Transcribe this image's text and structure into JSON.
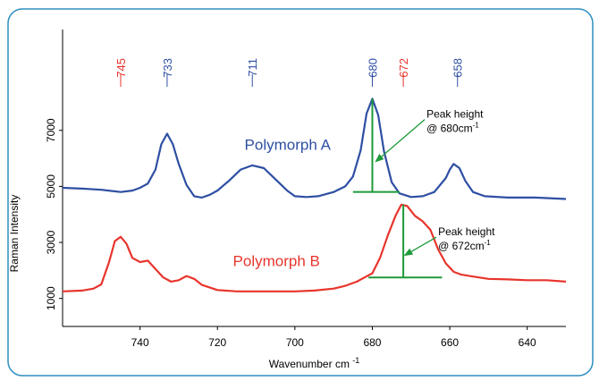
{
  "chart_data": {
    "type": "line",
    "title": "",
    "xlabel": "Wavenumber cm",
    "xlabel_sup": "-1",
    "ylabel": "Raman Intensity",
    "xlim": [
      760,
      630
    ],
    "ylim": [
      0,
      10600
    ],
    "x_ticks": [
      740,
      720,
      700,
      680,
      660,
      640
    ],
    "y_ticks": [
      1000,
      3000,
      5000,
      7000
    ],
    "grid": false,
    "series": [
      {
        "name": "Polymorph A",
        "color": "#2e4fa3",
        "points": [
          [
            760,
            4950
          ],
          [
            755,
            4920
          ],
          [
            750,
            4880
          ],
          [
            745,
            4800
          ],
          [
            742,
            4850
          ],
          [
            740,
            4950
          ],
          [
            738,
            5100
          ],
          [
            736,
            5600
          ],
          [
            734.5,
            6500
          ],
          [
            733,
            6880
          ],
          [
            731.5,
            6500
          ],
          [
            730,
            5800
          ],
          [
            728,
            5050
          ],
          [
            726,
            4650
          ],
          [
            724,
            4600
          ],
          [
            722,
            4700
          ],
          [
            720,
            4850
          ],
          [
            717,
            5200
          ],
          [
            714,
            5600
          ],
          [
            711,
            5750
          ],
          [
            708,
            5650
          ],
          [
            705,
            5250
          ],
          [
            702,
            4850
          ],
          [
            700,
            4650
          ],
          [
            697,
            4620
          ],
          [
            694,
            4650
          ],
          [
            690,
            4800
          ],
          [
            687,
            5000
          ],
          [
            685,
            5350
          ],
          [
            683,
            6300
          ],
          [
            681.5,
            7600
          ],
          [
            680,
            8130
          ],
          [
            678.5,
            7550
          ],
          [
            677,
            6250
          ],
          [
            675,
            5150
          ],
          [
            673,
            4750
          ],
          [
            670,
            4620
          ],
          [
            667,
            4650
          ],
          [
            664,
            4800
          ],
          [
            661,
            5300
          ],
          [
            660,
            5600
          ],
          [
            659,
            5800
          ],
          [
            657.5,
            5650
          ],
          [
            656,
            5200
          ],
          [
            654,
            4800
          ],
          [
            651,
            4650
          ],
          [
            645,
            4600
          ],
          [
            638,
            4600
          ],
          [
            630,
            4550
          ]
        ]
      },
      {
        "name": "Polymorph B",
        "color": "#e8342c",
        "points": [
          [
            760,
            1250
          ],
          [
            755,
            1280
          ],
          [
            752,
            1350
          ],
          [
            750,
            1500
          ],
          [
            748,
            2300
          ],
          [
            746.5,
            3050
          ],
          [
            745,
            3200
          ],
          [
            743.5,
            2950
          ],
          [
            742,
            2450
          ],
          [
            740,
            2300
          ],
          [
            738,
            2350
          ],
          [
            736,
            2050
          ],
          [
            734,
            1750
          ],
          [
            732,
            1600
          ],
          [
            730,
            1650
          ],
          [
            728,
            1800
          ],
          [
            726,
            1700
          ],
          [
            724,
            1480
          ],
          [
            720,
            1300
          ],
          [
            715,
            1250
          ],
          [
            705,
            1250
          ],
          [
            700,
            1250
          ],
          [
            695,
            1280
          ],
          [
            690,
            1350
          ],
          [
            687,
            1450
          ],
          [
            684,
            1600
          ],
          [
            682,
            1750
          ],
          [
            680,
            1900
          ],
          [
            678,
            2450
          ],
          [
            676,
            3250
          ],
          [
            674,
            3950
          ],
          [
            672.5,
            4350
          ],
          [
            671,
            4300
          ],
          [
            669,
            3950
          ],
          [
            667,
            3750
          ],
          [
            665,
            3450
          ],
          [
            663,
            2750
          ],
          [
            661,
            2250
          ],
          [
            659,
            1950
          ],
          [
            657,
            1850
          ],
          [
            654,
            1780
          ],
          [
            650,
            1700
          ],
          [
            645,
            1680
          ],
          [
            640,
            1650
          ],
          [
            635,
            1650
          ],
          [
            630,
            1600
          ]
        ]
      }
    ],
    "peak_labels": [
      {
        "text": "745",
        "x": 745,
        "color": "#e8342c"
      },
      {
        "text": "733",
        "x": 733,
        "color": "#2e4fa3"
      },
      {
        "text": "711",
        "x": 711,
        "color": "#2e4fa3"
      },
      {
        "text": "680",
        "x": 680,
        "color": "#2e4fa3"
      },
      {
        "text": "672",
        "x": 672,
        "color": "#e8342c"
      },
      {
        "text": "658",
        "x": 658,
        "color": "#2e4fa3"
      }
    ],
    "series_labels": [
      {
        "text": "Polymorph A",
        "x": 713,
        "y": 6300,
        "color": "#2e4fa3"
      },
      {
        "text": "Polymorph B",
        "x": 716,
        "y": 2150,
        "color": "#e8342c"
      }
    ],
    "peak_markers": [
      {
        "peak_x": 680,
        "peak_y": 8130,
        "base_y": 4800,
        "base_x1": 685,
        "base_x2": 673
      },
      {
        "peak_x": 672,
        "peak_y": 4350,
        "base_y": 1750,
        "base_x1": 681,
        "base_x2": 662
      }
    ],
    "annotations": [
      {
        "line1": "Peak height",
        "line2": "@ 680cm",
        "sup": "-1",
        "text_x": 666,
        "text_y": 7450,
        "arrow_to_x": 679,
        "arrow_to_y": 5900
      },
      {
        "line1": "Peak height",
        "line2": "@ 672cm",
        "sup": "-1",
        "text_x": 663,
        "text_y": 3250,
        "arrow_to_x": 671.5,
        "arrow_to_y": 2550
      }
    ],
    "colors": {
      "marker": "#1e9a3a",
      "axis": "#000000",
      "frame": "#2e8fc0"
    }
  }
}
